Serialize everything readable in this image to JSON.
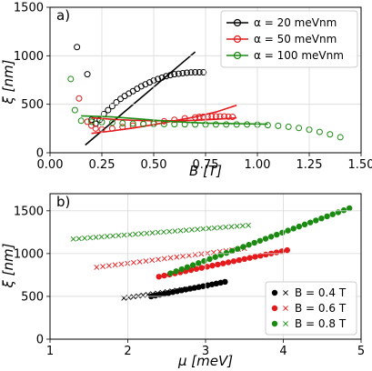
{
  "chart_data": [
    {
      "panel_label": "a)",
      "type": "scatter",
      "xlabel": "B [T]",
      "ylabel": "ξ [nm]",
      "xlim": [
        0.0,
        1.5
      ],
      "ylim": [
        0,
        1500
      ],
      "xticks": [
        "0.00",
        "0.25",
        "0.50",
        "0.75",
        "1.00",
        "1.25",
        "1.50"
      ],
      "yticks": [
        "0",
        "500",
        "1000",
        "1500"
      ],
      "grid": true,
      "legend_position": "top-right",
      "series": [
        {
          "name": "α = 20 meVnm",
          "color": "#000000",
          "markers_x": [
            0.13,
            0.18,
            0.2,
            0.22,
            0.24,
            0.26,
            0.28,
            0.3,
            0.32,
            0.34,
            0.36,
            0.38,
            0.4,
            0.42,
            0.44,
            0.46,
            0.48,
            0.5,
            0.52,
            0.54,
            0.56,
            0.58,
            0.6,
            0.62,
            0.64,
            0.66,
            0.68,
            0.7,
            0.72,
            0.74
          ],
          "markers_y": [
            1090,
            810,
            340,
            300,
            340,
            400,
            440,
            480,
            520,
            555,
            585,
            610,
            635,
            660,
            685,
            705,
            725,
            745,
            760,
            775,
            790,
            800,
            810,
            815,
            820,
            825,
            828,
            830,
            830,
            830
          ],
          "line_x": [
            0.17,
            0.7
          ],
          "line_y": [
            80,
            1040
          ]
        },
        {
          "name": "α = 50 meVnm",
          "color": "#e41a1c",
          "markers_x": [
            0.14,
            0.18,
            0.2,
            0.22,
            0.25,
            0.3,
            0.35,
            0.4,
            0.45,
            0.5,
            0.55,
            0.6,
            0.65,
            0.7,
            0.72,
            0.74,
            0.76,
            0.78,
            0.8,
            0.82,
            0.84,
            0.86,
            0.88
          ],
          "markers_y": [
            560,
            320,
            280,
            250,
            240,
            250,
            265,
            280,
            295,
            310,
            325,
            340,
            355,
            365,
            370,
            372,
            374,
            375,
            375,
            375,
            375,
            372,
            370
          ],
          "line1_x": [
            0.2,
            0.3,
            0.4,
            0.5,
            0.6,
            0.7,
            0.8,
            0.9
          ],
          "line1_y": [
            200,
            225,
            255,
            290,
            330,
            370,
            420,
            490
          ],
          "line2_x": [
            0.2,
            0.3,
            0.4,
            0.5,
            0.6,
            0.7,
            0.8,
            0.9
          ],
          "line2_y": [
            360,
            345,
            335,
            330,
            330,
            335,
            345,
            360
          ]
        },
        {
          "name": "α = 100 meVnm",
          "color": "#1a8a10",
          "markers_x": [
            0.1,
            0.12,
            0.15,
            0.2,
            0.25,
            0.3,
            0.35,
            0.4,
            0.45,
            0.5,
            0.55,
            0.6,
            0.65,
            0.7,
            0.75,
            0.8,
            0.85,
            0.9,
            0.95,
            1.0,
            1.05,
            1.1,
            1.15,
            1.2,
            1.25,
            1.3,
            1.35,
            1.4
          ],
          "markers_y": [
            760,
            440,
            330,
            320,
            315,
            310,
            305,
            300,
            298,
            296,
            295,
            294,
            293,
            292,
            292,
            292,
            292,
            292,
            292,
            290,
            285,
            278,
            268,
            255,
            238,
            215,
            190,
            160
          ],
          "line_x": [
            0.15,
            0.3,
            0.45,
            0.6,
            0.75,
            0.9,
            1.05
          ],
          "line_y": [
            380,
            370,
            345,
            320,
            305,
            300,
            295
          ]
        }
      ]
    },
    {
      "panel_label": "b)",
      "type": "scatter",
      "xlabel": "μ [meV]",
      "ylabel": "ξ [nm]",
      "xlim": [
        1,
        5
      ],
      "ylim": [
        0,
        1700
      ],
      "xticks": [
        "1",
        "2",
        "3",
        "4",
        "5"
      ],
      "yticks": [
        "0",
        "500",
        "1000",
        "1500"
      ],
      "grid": true,
      "legend_position": "lower-right",
      "series": [
        {
          "name": "B = 0.4 T",
          "color": "#000000",
          "filled": {
            "x_start": 2.3,
            "x_end": 3.25,
            "y_start": 500,
            "y_end": 670,
            "count": 18
          },
          "crosses": {
            "x_start": 1.95,
            "x_end": 3.0,
            "y_start": 480,
            "y_end": 620,
            "count": 18
          }
        },
        {
          "name": "B = 0.6 T",
          "color": "#e41a1c",
          "filled": {
            "x_start": 2.4,
            "x_end": 4.05,
            "y_start": 730,
            "y_end": 1040,
            "count": 25
          },
          "crosses": {
            "x_start": 1.6,
            "x_end": 3.5,
            "y_start": 840,
            "y_end": 1060,
            "count": 25
          }
        },
        {
          "name": "B = 0.8 T",
          "color": "#1a8a10",
          "filled": {
            "x_start": 2.55,
            "x_end": 4.85,
            "y_start": 770,
            "y_end": 1530,
            "count": 33
          },
          "crosses": {
            "x_start": 1.3,
            "x_end": 3.55,
            "y_start": 1170,
            "y_end": 1330,
            "count": 32
          }
        }
      ]
    }
  ]
}
